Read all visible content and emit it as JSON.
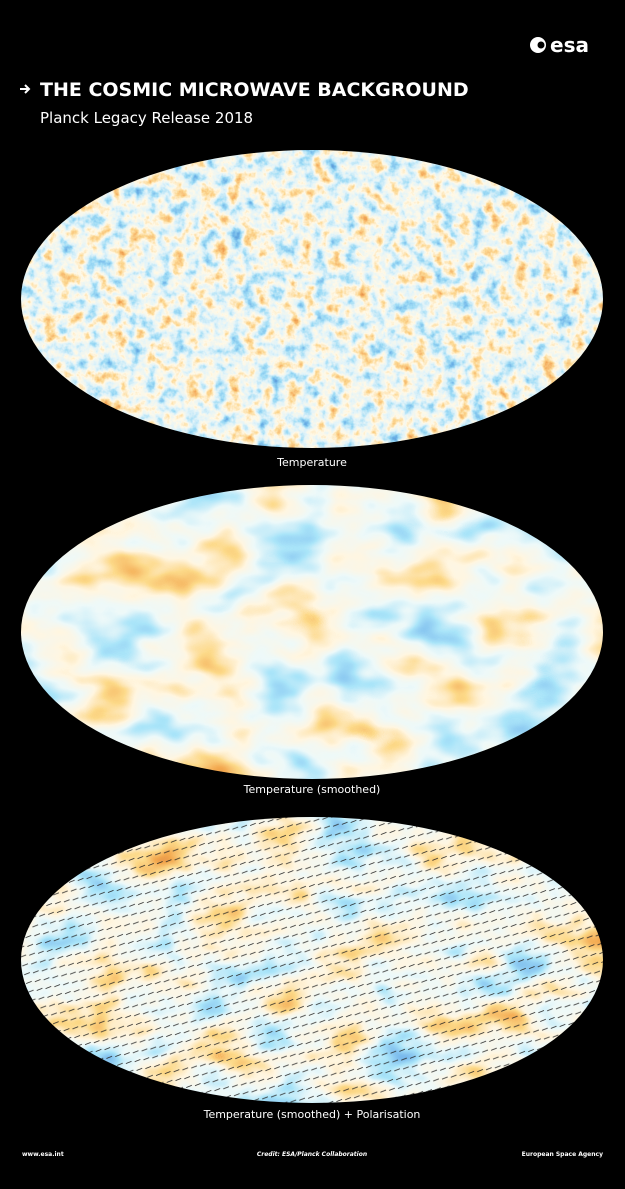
{
  "header": {
    "logo": "esa",
    "title": "THE COSMIC MICROWAVE BACKGROUND",
    "subtitle": "Planck Legacy Release 2018"
  },
  "maps": [
    {
      "caption": "Temperature"
    },
    {
      "caption": "Temperature (smoothed)"
    },
    {
      "caption": "Temperature (smoothed) + Polarisation"
    }
  ],
  "footer": {
    "website": "www.esa.int",
    "credit": "Credit: ESA/Planck Collaboration",
    "agency": "European Space Agency"
  }
}
